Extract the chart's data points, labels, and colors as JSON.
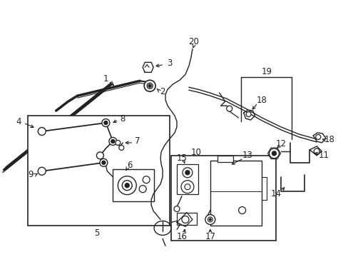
{
  "bg_color": "#ffffff",
  "line_color": "#222222",
  "fig_width": 4.89,
  "fig_height": 3.6,
  "dpi": 100,
  "label_fontsize": 8.5
}
